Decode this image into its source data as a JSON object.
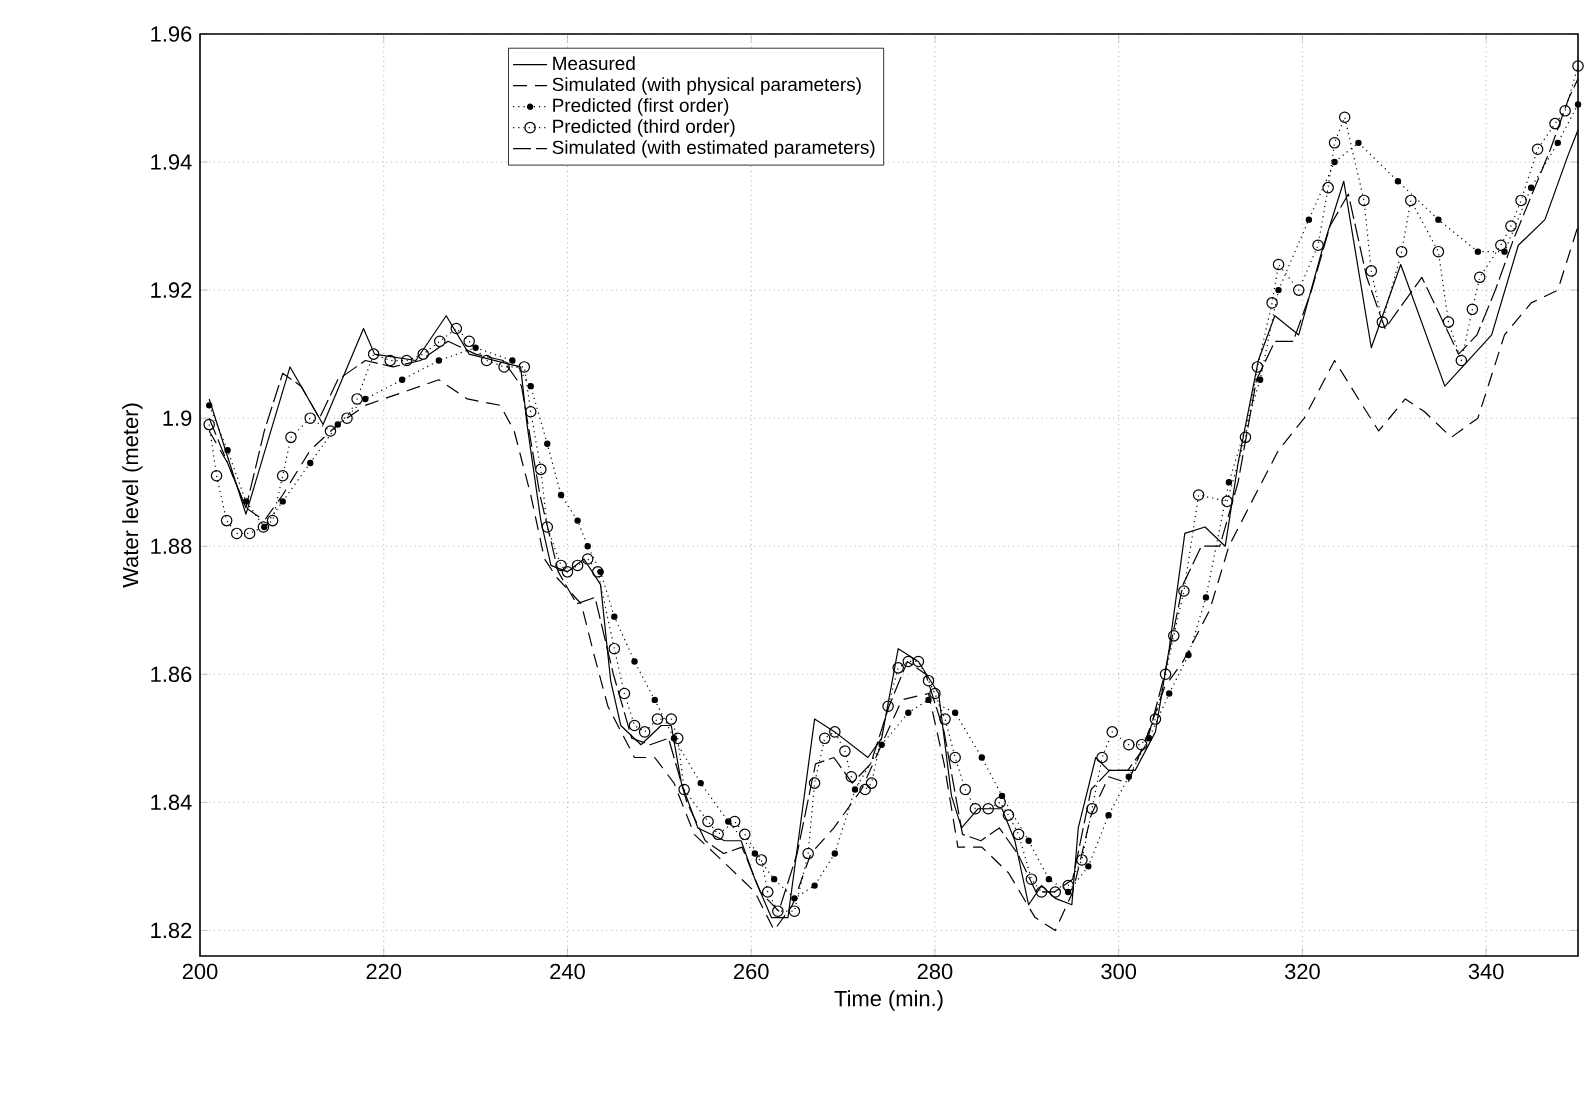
{
  "chart_data": {
    "type": "line",
    "xlabel": "Time (min.)",
    "ylabel": "Water level (meter)",
    "xlim": [
      200,
      350
    ],
    "xticks": [
      200,
      220,
      240,
      260,
      280,
      300,
      320,
      340
    ],
    "ylim": [
      1.816,
      1.96
    ],
    "yticks": [
      1.82,
      1.84,
      1.86,
      1.88,
      1.9,
      1.92,
      1.94,
      1.96
    ],
    "grid": true,
    "legend": "top",
    "series": [
      {
        "name": "Measured",
        "color": "#000000",
        "line_style": "solid",
        "marker": "none",
        "x": [
          201,
          205,
          209.8,
          213.4,
          217.8,
          219,
          223.5,
          226.8,
          229.3,
          234.9,
          235.6,
          237.1,
          238.2,
          240,
          241.8,
          243.6,
          244.7,
          245.8,
          248,
          250.2,
          251.3,
          252.4,
          254.2,
          257.1,
          258.9,
          260.4,
          262.2,
          264,
          266.9,
          269.1,
          272.7,
          274.2,
          276,
          278.2,
          280.4,
          281.8,
          282.9,
          284.7,
          287.3,
          288.7,
          290.2,
          291.6,
          293.1,
          294.9,
          295.6,
          297.5,
          298.9,
          301.8,
          304,
          305.5,
          307.2,
          309.4,
          311.6,
          313,
          315.2,
          317,
          319.6,
          322.1,
          324.5,
          327.5,
          330.7,
          335.5,
          340.6,
          343.5,
          346.4,
          348.9,
          350
        ],
        "values": [
          1.903,
          1.885,
          1.908,
          1.899,
          1.914,
          1.91,
          1.909,
          1.916,
          1.91,
          1.908,
          1.899,
          1.884,
          1.877,
          1.876,
          1.878,
          1.874,
          1.859,
          1.852,
          1.849,
          1.852,
          1.852,
          1.843,
          1.836,
          1.834,
          1.834,
          1.828,
          1.822,
          1.822,
          1.853,
          1.851,
          1.847,
          1.85,
          1.864,
          1.862,
          1.857,
          1.841,
          1.836,
          1.839,
          1.839,
          1.834,
          1.824,
          1.827,
          1.825,
          1.824,
          1.836,
          1.847,
          1.845,
          1.845,
          1.851,
          1.864,
          1.882,
          1.883,
          1.88,
          1.893,
          1.909,
          1.916,
          1.913,
          1.926,
          1.937,
          1.911,
          1.924,
          1.905,
          1.913,
          1.927,
          1.931,
          1.941,
          1.945
        ]
      },
      {
        "name": "Simulated (with physical parameters)",
        "color": "#000000",
        "line_style": "dashed",
        "marker": "none",
        "x": [
          201,
          203,
          205,
          207,
          209,
          212,
          215,
          218,
          222,
          226,
          229.1,
          232.7,
          234.2,
          236,
          237.5,
          238.9,
          241.5,
          242.9,
          244.4,
          247.3,
          249.5,
          251.6,
          253.8,
          257.5,
          260.4,
          262.5,
          264.5,
          266.5,
          269,
          272,
          274.5,
          276.4,
          279.3,
          281,
          282.5,
          285.1,
          288,
          290.9,
          293.1,
          295,
          297,
          298.9,
          301,
          303,
          305,
          307,
          309.9,
          312,
          314.5,
          317.4,
          320.2,
          323.5,
          326.1,
          328.3,
          331.2,
          333.3,
          336.2,
          339.1,
          342,
          344.9,
          347.8,
          350
        ],
        "values": [
          1.898,
          1.893,
          1.886,
          1.884,
          1.888,
          1.895,
          1.899,
          1.902,
          1.904,
          1.906,
          1.903,
          1.902,
          1.898,
          1.888,
          1.878,
          1.875,
          1.871,
          1.863,
          1.855,
          1.847,
          1.847,
          1.843,
          1.835,
          1.83,
          1.826,
          1.82,
          1.824,
          1.832,
          1.836,
          1.842,
          1.85,
          1.856,
          1.857,
          1.846,
          1.833,
          1.833,
          1.829,
          1.822,
          1.82,
          1.826,
          1.838,
          1.844,
          1.843,
          1.85,
          1.858,
          1.862,
          1.87,
          1.88,
          1.887,
          1.895,
          1.9,
          1.909,
          1.903,
          1.898,
          1.903,
          1.901,
          1.897,
          1.9,
          1.913,
          1.918,
          1.92,
          1.93
        ]
      },
      {
        "name": "Predicted (first order)",
        "color": "#000000",
        "line_style": "dotted",
        "marker": "circle",
        "x": [
          201,
          203,
          205,
          207,
          209,
          212,
          215,
          218,
          222,
          226,
          230,
          234,
          236,
          237.8,
          239.3,
          241.1,
          242.2,
          243.6,
          245.1,
          247.3,
          249.5,
          251.6,
          254.5,
          257.5,
          260.4,
          262.5,
          264.7,
          266.9,
          269.1,
          271.3,
          274.2,
          277.1,
          279.3,
          282.2,
          285.1,
          287.3,
          290.2,
          292.4,
          294.5,
          296.7,
          298.9,
          301.1,
          303.3,
          305.5,
          307.6,
          309.5,
          312,
          315.4,
          317.4,
          320.7,
          323.5,
          326.1,
          330.4,
          334.8,
          339.1,
          342,
          344.9,
          347.8,
          350
        ],
        "values": [
          1.902,
          1.895,
          1.887,
          1.883,
          1.887,
          1.893,
          1.899,
          1.903,
          1.906,
          1.909,
          1.911,
          1.909,
          1.905,
          1.896,
          1.888,
          1.884,
          1.88,
          1.876,
          1.869,
          1.862,
          1.856,
          1.85,
          1.843,
          1.837,
          1.832,
          1.828,
          1.825,
          1.827,
          1.832,
          1.842,
          1.849,
          1.854,
          1.856,
          1.854,
          1.847,
          1.841,
          1.834,
          1.828,
          1.826,
          1.83,
          1.838,
          1.844,
          1.85,
          1.857,
          1.863,
          1.872,
          1.89,
          1.906,
          1.92,
          1.931,
          1.94,
          1.943,
          1.937,
          1.931,
          1.926,
          1.926,
          1.936,
          1.943,
          1.949
        ]
      },
      {
        "name": "Predicted (third order)",
        "color": "#000000",
        "line_style": "dotted",
        "marker": "circle",
        "x": [
          201,
          201.8,
          202.9,
          204,
          205.4,
          206.9,
          207.9,
          209,
          209.9,
          212,
          214.2,
          216,
          217.1,
          218.9,
          220.7,
          222.5,
          224.3,
          226.1,
          227.9,
          229.3,
          231.2,
          233.1,
          235.3,
          236,
          237.1,
          237.8,
          239.3,
          240,
          241.1,
          242.2,
          243.3,
          245.1,
          246.2,
          247.3,
          248.4,
          249.8,
          251.3,
          252,
          252.7,
          255.3,
          256.4,
          258.2,
          259.3,
          261.1,
          261.8,
          262.9,
          264.7,
          266.2,
          266.9,
          268,
          269.1,
          270.2,
          270.9,
          272.4,
          273.1,
          274.9,
          276,
          277.1,
          278.2,
          279.3,
          280,
          281.1,
          282.2,
          283.3,
          284.4,
          285.8,
          287.1,
          288,
          289.1,
          290.5,
          291.6,
          293.1,
          294.5,
          296,
          297.1,
          298.2,
          299.3,
          301.1,
          302.5,
          304,
          305.1,
          306,
          307.1,
          308.7,
          311.8,
          313.8,
          315.1,
          316.7,
          317.4,
          319.6,
          321.7,
          322.8,
          323.5,
          324.6,
          326.7,
          327.5,
          328.7,
          330.8,
          331.8,
          334.8,
          335.9,
          337.3,
          338.5,
          339.3,
          341.6,
          342.7,
          343.8,
          345.6,
          347.5,
          348.6,
          350
        ],
        "values": [
          1.899,
          1.891,
          1.884,
          1.882,
          1.882,
          1.883,
          1.884,
          1.891,
          1.897,
          1.9,
          1.898,
          1.9,
          1.903,
          1.91,
          1.909,
          1.909,
          1.91,
          1.912,
          1.914,
          1.912,
          1.909,
          1.908,
          1.908,
          1.901,
          1.892,
          1.883,
          1.877,
          1.876,
          1.877,
          1.878,
          1.876,
          1.864,
          1.857,
          1.852,
          1.851,
          1.853,
          1.853,
          1.85,
          1.842,
          1.837,
          1.835,
          1.837,
          1.835,
          1.831,
          1.826,
          1.823,
          1.823,
          1.832,
          1.843,
          1.85,
          1.851,
          1.848,
          1.844,
          1.842,
          1.843,
          1.855,
          1.861,
          1.862,
          1.862,
          1.859,
          1.857,
          1.853,
          1.847,
          1.842,
          1.839,
          1.839,
          1.84,
          1.838,
          1.835,
          1.828,
          1.826,
          1.826,
          1.827,
          1.831,
          1.839,
          1.847,
          1.851,
          1.849,
          1.849,
          1.853,
          1.86,
          1.866,
          1.873,
          1.888,
          1.887,
          1.897,
          1.908,
          1.918,
          1.924,
          1.92,
          1.927,
          1.936,
          1.943,
          1.947,
          1.934,
          1.923,
          1.915,
          1.926,
          1.934,
          1.926,
          1.915,
          1.909,
          1.917,
          1.922,
          1.927,
          1.93,
          1.934,
          1.942,
          1.946,
          1.948,
          1.955
        ]
      },
      {
        "name": "Simulated (with estimated parameters)",
        "color": "#000000",
        "line_style": "dashed",
        "marker": "none",
        "x": [
          201,
          203,
          205,
          207,
          209,
          211,
          213,
          215,
          218,
          221,
          224,
          227,
          230,
          233,
          235,
          237,
          239,
          241,
          243,
          245,
          247,
          249,
          251,
          253,
          255,
          257,
          259,
          261,
          263,
          265,
          267,
          269,
          271,
          273,
          275,
          277,
          279,
          281,
          283,
          285,
          287,
          289,
          291,
          293,
          295,
          297,
          299,
          301,
          303,
          305,
          307,
          309,
          311,
          313,
          315,
          317,
          319,
          321,
          323,
          325,
          327,
          329,
          331,
          333,
          335,
          337,
          339,
          341,
          343,
          345,
          347,
          349,
          350
        ],
        "values": [
          1.9,
          1.893,
          1.886,
          1.898,
          1.907,
          1.905,
          1.9,
          1.906,
          1.909,
          1.908,
          1.909,
          1.912,
          1.91,
          1.909,
          1.905,
          1.888,
          1.876,
          1.871,
          1.872,
          1.86,
          1.85,
          1.849,
          1.85,
          1.84,
          1.834,
          1.832,
          1.833,
          1.826,
          1.823,
          1.832,
          1.846,
          1.847,
          1.843,
          1.846,
          1.855,
          1.862,
          1.86,
          1.851,
          1.835,
          1.834,
          1.836,
          1.832,
          1.826,
          1.826,
          1.828,
          1.842,
          1.845,
          1.845,
          1.849,
          1.86,
          1.874,
          1.88,
          1.88,
          1.89,
          1.906,
          1.912,
          1.912,
          1.92,
          1.93,
          1.935,
          1.922,
          1.914,
          1.918,
          1.922,
          1.916,
          1.91,
          1.913,
          1.92,
          1.928,
          1.935,
          1.942,
          1.95,
          1.953
        ]
      }
    ]
  }
}
